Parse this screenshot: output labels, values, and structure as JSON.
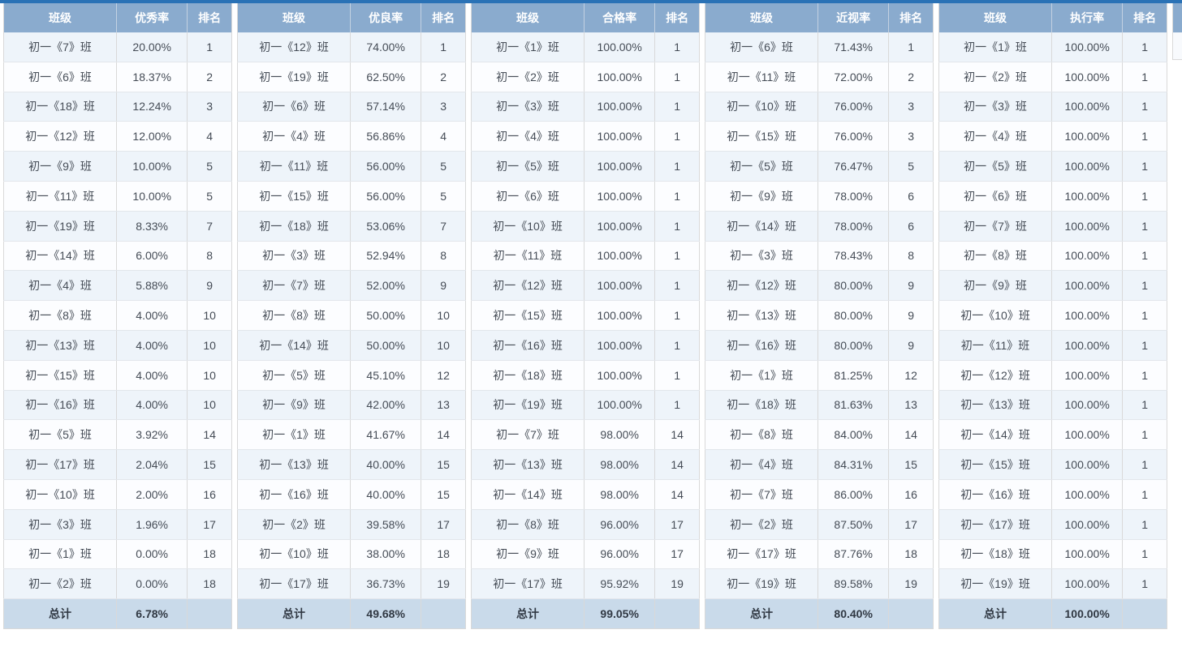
{
  "colors": {
    "top_bar": "#2a72b6",
    "header_bg": "#8aabce",
    "header_text": "#ffffff",
    "row_odd": "#eef4fa",
    "row_even": "#fcfdff",
    "total_row_bg": "#c9daea",
    "border": "#d9d9d9",
    "cell_text": "#454c56",
    "total_text": "#303843"
  },
  "tables": [
    {
      "id": "excellent-rate",
      "metric": "优秀率",
      "columns": [
        "班级",
        "优秀率",
        "排名"
      ],
      "rows": [
        [
          "初一《7》班",
          "20.00%",
          "1"
        ],
        [
          "初一《6》班",
          "18.37%",
          "2"
        ],
        [
          "初一《18》班",
          "12.24%",
          "3"
        ],
        [
          "初一《12》班",
          "12.00%",
          "4"
        ],
        [
          "初一《9》班",
          "10.00%",
          "5"
        ],
        [
          "初一《11》班",
          "10.00%",
          "5"
        ],
        [
          "初一《19》班",
          "8.33%",
          "7"
        ],
        [
          "初一《14》班",
          "6.00%",
          "8"
        ],
        [
          "初一《4》班",
          "5.88%",
          "9"
        ],
        [
          "初一《8》班",
          "4.00%",
          "10"
        ],
        [
          "初一《13》班",
          "4.00%",
          "10"
        ],
        [
          "初一《15》班",
          "4.00%",
          "10"
        ],
        [
          "初一《16》班",
          "4.00%",
          "10"
        ],
        [
          "初一《5》班",
          "3.92%",
          "14"
        ],
        [
          "初一《17》班",
          "2.04%",
          "15"
        ],
        [
          "初一《10》班",
          "2.00%",
          "16"
        ],
        [
          "初一《3》班",
          "1.96%",
          "17"
        ],
        [
          "初一《1》班",
          "0.00%",
          "18"
        ],
        [
          "初一《2》班",
          "0.00%",
          "18"
        ]
      ],
      "total_label": "总计",
      "total_value": "6.78%",
      "total_rank": ""
    },
    {
      "id": "good-rate",
      "metric": "优良率",
      "columns": [
        "班级",
        "优良率",
        "排名"
      ],
      "rows": [
        [
          "初一《12》班",
          "74.00%",
          "1"
        ],
        [
          "初一《19》班",
          "62.50%",
          "2"
        ],
        [
          "初一《6》班",
          "57.14%",
          "3"
        ],
        [
          "初一《4》班",
          "56.86%",
          "4"
        ],
        [
          "初一《11》班",
          "56.00%",
          "5"
        ],
        [
          "初一《15》班",
          "56.00%",
          "5"
        ],
        [
          "初一《18》班",
          "53.06%",
          "7"
        ],
        [
          "初一《3》班",
          "52.94%",
          "8"
        ],
        [
          "初一《7》班",
          "52.00%",
          "9"
        ],
        [
          "初一《8》班",
          "50.00%",
          "10"
        ],
        [
          "初一《14》班",
          "50.00%",
          "10"
        ],
        [
          "初一《5》班",
          "45.10%",
          "12"
        ],
        [
          "初一《9》班",
          "42.00%",
          "13"
        ],
        [
          "初一《1》班",
          "41.67%",
          "14"
        ],
        [
          "初一《13》班",
          "40.00%",
          "15"
        ],
        [
          "初一《16》班",
          "40.00%",
          "15"
        ],
        [
          "初一《2》班",
          "39.58%",
          "17"
        ],
        [
          "初一《10》班",
          "38.00%",
          "18"
        ],
        [
          "初一《17》班",
          "36.73%",
          "19"
        ]
      ],
      "total_label": "总计",
      "total_value": "49.68%",
      "total_rank": ""
    },
    {
      "id": "pass-rate",
      "metric": "合格率",
      "columns": [
        "班级",
        "合格率",
        "排名"
      ],
      "rows": [
        [
          "初一《1》班",
          "100.00%",
          "1"
        ],
        [
          "初一《2》班",
          "100.00%",
          "1"
        ],
        [
          "初一《3》班",
          "100.00%",
          "1"
        ],
        [
          "初一《4》班",
          "100.00%",
          "1"
        ],
        [
          "初一《5》班",
          "100.00%",
          "1"
        ],
        [
          "初一《6》班",
          "100.00%",
          "1"
        ],
        [
          "初一《10》班",
          "100.00%",
          "1"
        ],
        [
          "初一《11》班",
          "100.00%",
          "1"
        ],
        [
          "初一《12》班",
          "100.00%",
          "1"
        ],
        [
          "初一《15》班",
          "100.00%",
          "1"
        ],
        [
          "初一《16》班",
          "100.00%",
          "1"
        ],
        [
          "初一《18》班",
          "100.00%",
          "1"
        ],
        [
          "初一《19》班",
          "100.00%",
          "1"
        ],
        [
          "初一《7》班",
          "98.00%",
          "14"
        ],
        [
          "初一《13》班",
          "98.00%",
          "14"
        ],
        [
          "初一《14》班",
          "98.00%",
          "14"
        ],
        [
          "初一《8》班",
          "96.00%",
          "17"
        ],
        [
          "初一《9》班",
          "96.00%",
          "17"
        ],
        [
          "初一《17》班",
          "95.92%",
          "19"
        ]
      ],
      "total_label": "总计",
      "total_value": "99.05%",
      "total_rank": ""
    },
    {
      "id": "myopia-rate",
      "metric": "近视率",
      "columns": [
        "班级",
        "近视率",
        "排名"
      ],
      "rows": [
        [
          "初一《6》班",
          "71.43%",
          "1"
        ],
        [
          "初一《11》班",
          "72.00%",
          "2"
        ],
        [
          "初一《10》班",
          "76.00%",
          "3"
        ],
        [
          "初一《15》班",
          "76.00%",
          "3"
        ],
        [
          "初一《5》班",
          "76.47%",
          "5"
        ],
        [
          "初一《9》班",
          "78.00%",
          "6"
        ],
        [
          "初一《14》班",
          "78.00%",
          "6"
        ],
        [
          "初一《3》班",
          "78.43%",
          "8"
        ],
        [
          "初一《12》班",
          "80.00%",
          "9"
        ],
        [
          "初一《13》班",
          "80.00%",
          "9"
        ],
        [
          "初一《16》班",
          "80.00%",
          "9"
        ],
        [
          "初一《1》班",
          "81.25%",
          "12"
        ],
        [
          "初一《18》班",
          "81.63%",
          "13"
        ],
        [
          "初一《8》班",
          "84.00%",
          "14"
        ],
        [
          "初一《4》班",
          "84.31%",
          "15"
        ],
        [
          "初一《7》班",
          "86.00%",
          "16"
        ],
        [
          "初一《2》班",
          "87.50%",
          "17"
        ],
        [
          "初一《17》班",
          "87.76%",
          "18"
        ],
        [
          "初一《19》班",
          "89.58%",
          "19"
        ]
      ],
      "total_label": "总计",
      "total_value": "80.40%",
      "total_rank": ""
    },
    {
      "id": "execution-rate",
      "metric": "执行率",
      "columns": [
        "班级",
        "执行率",
        "排名"
      ],
      "rows": [
        [
          "初一《1》班",
          "100.00%",
          "1"
        ],
        [
          "初一《2》班",
          "100.00%",
          "1"
        ],
        [
          "初一《3》班",
          "100.00%",
          "1"
        ],
        [
          "初一《4》班",
          "100.00%",
          "1"
        ],
        [
          "初一《5》班",
          "100.00%",
          "1"
        ],
        [
          "初一《6》班",
          "100.00%",
          "1"
        ],
        [
          "初一《7》班",
          "100.00%",
          "1"
        ],
        [
          "初一《8》班",
          "100.00%",
          "1"
        ],
        [
          "初一《9》班",
          "100.00%",
          "1"
        ],
        [
          "初一《10》班",
          "100.00%",
          "1"
        ],
        [
          "初一《11》班",
          "100.00%",
          "1"
        ],
        [
          "初一《12》班",
          "100.00%",
          "1"
        ],
        [
          "初一《13》班",
          "100.00%",
          "1"
        ],
        [
          "初一《14》班",
          "100.00%",
          "1"
        ],
        [
          "初一《15》班",
          "100.00%",
          "1"
        ],
        [
          "初一《16》班",
          "100.00%",
          "1"
        ],
        [
          "初一《17》班",
          "100.00%",
          "1"
        ],
        [
          "初一《18》班",
          "100.00%",
          "1"
        ],
        [
          "初一《19》班",
          "100.00%",
          "1"
        ]
      ],
      "total_label": "总计",
      "total_value": "100.00%",
      "total_rank": ""
    }
  ],
  "partial_table": {
    "visible": true,
    "description": "left edge of a sixth table clipped by the viewport (header + first row visible)"
  }
}
